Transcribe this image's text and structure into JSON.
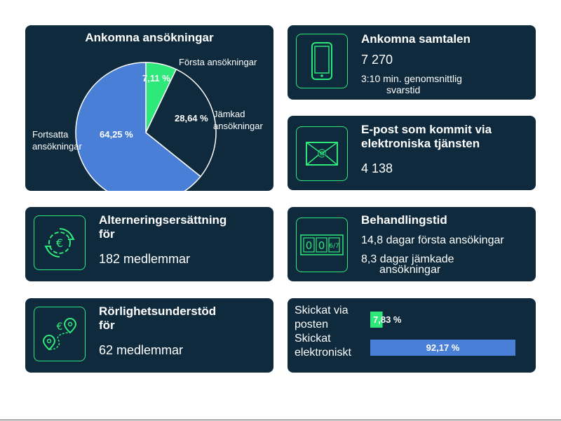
{
  "colors": {
    "card_bg": "#0f2a3c",
    "accent_green": "#2ee87a",
    "pie_blue": "#4a7fd8",
    "pie_dark": "#0f2a3c",
    "bar_blue": "#4a7fd8"
  },
  "pie_card": {
    "title": "Ankomna ansökningar",
    "label_forsta": "Första ansökningar",
    "label_jamkad": "Jämkad ansökningar",
    "label_fortsatta": "Fortsatta ansökningar"
  },
  "calls_card": {
    "icon": "phone-icon",
    "title": "Ankomna samtalen",
    "value": "7 270",
    "sub_line1": "3:10 min. genomsnittlig",
    "sub_line2": "svarstid"
  },
  "email_card": {
    "icon": "envelope-at-icon",
    "title_line1": "E-post som kommit via",
    "title_line2": "elektroniska tjänsten",
    "value": "4 138"
  },
  "alt_card": {
    "icon": "euro-cycle-gear-icon",
    "title_line1": "Alterneringsersättning",
    "title_line2": "för",
    "value": "182 medlemmar"
  },
  "proc_card": {
    "icon": "counter-icon",
    "counter_digits": [
      "0",
      "0",
      "6/7"
    ],
    "title": "Behandlingstid",
    "line1": "14,8 dagar första ansökingar",
    "line2a": "8,3 dagar jämkade",
    "line2b": "ansökningar"
  },
  "mob_card": {
    "icon": "map-pin-euro-icon",
    "title_line1": "Rörlighetsunderstöd",
    "title_line2": "för",
    "value": "62 medlemmar"
  },
  "chart_data": [
    {
      "type": "pie",
      "title": "Ankomna ansökningar",
      "slices": [
        {
          "name": "Första ansökningar",
          "value": 7.11,
          "label": "7,11 %",
          "color": "#2ee87a"
        },
        {
          "name": "Jämkad ansökningar",
          "value": 28.64,
          "label": "28,64 %",
          "color": "#0f2a3c"
        },
        {
          "name": "Fortsatta ansökningar",
          "value": 64.25,
          "label": "64,25 %",
          "color": "#4a7fd8"
        }
      ]
    },
    {
      "type": "bar",
      "orientation": "horizontal",
      "categories": [
        "Skickat via posten",
        "Skickat elektroniskt"
      ],
      "category_lines": [
        [
          "Skickat via",
          "posten"
        ],
        [
          "Skickat",
          "elektroniskt"
        ]
      ],
      "values": [
        7.83,
        92.17
      ],
      "labels": [
        "7,83 %",
        "92,17 %"
      ],
      "colors": [
        "#2ee87a",
        "#4a7fd8"
      ],
      "xlim": [
        0,
        92.17
      ]
    }
  ]
}
